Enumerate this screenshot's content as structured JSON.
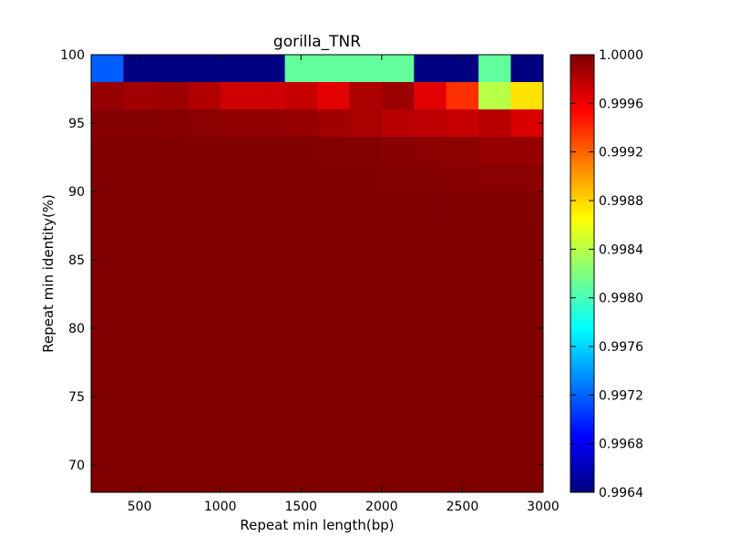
{
  "chart_data": {
    "type": "heatmap",
    "title": "gorilla_TNR",
    "xlabel": "Repeat min length(bp)",
    "ylabel": "Repeat min identity(%)",
    "x_range": [
      200,
      3000
    ],
    "y_range": [
      68,
      100
    ],
    "x_ticks": [
      "500",
      "1000",
      "1500",
      "2000",
      "2500",
      "3000"
    ],
    "y_ticks": [
      "70",
      "75",
      "80",
      "85",
      "90",
      "95",
      "100"
    ],
    "x_tick_values": [
      500,
      1000,
      1500,
      2000,
      2500,
      3000
    ],
    "y_tick_values": [
      70,
      75,
      80,
      85,
      90,
      95,
      100
    ],
    "x_bins": [
      200,
      400,
      600,
      800,
      1000,
      1200,
      1400,
      1600,
      1800,
      2000,
      2200,
      2400,
      2600,
      2800,
      3000
    ],
    "y_bins": [
      68,
      70,
      72,
      74,
      76,
      78,
      80,
      82,
      84,
      86,
      88,
      90,
      92,
      94,
      96,
      98,
      100
    ],
    "values": [
      [
        0.99718,
        0.9964,
        0.9964,
        0.9964,
        0.9964,
        0.9964,
        0.9981,
        0.9981,
        0.9981,
        0.9981,
        0.9964,
        0.9964,
        0.9981,
        0.9964
      ],
      [
        0.99992,
        0.99988,
        0.9999,
        0.99982,
        0.99972,
        0.99972,
        0.99975,
        0.99965,
        0.99984,
        0.9999,
        0.99965,
        0.99938,
        0.9984,
        0.99875
      ],
      [
        0.99998,
        0.99998,
        0.99997,
        0.99996,
        0.99994,
        0.99994,
        0.99992,
        0.99988,
        0.99985,
        0.9998,
        0.99978,
        0.99975,
        0.9998,
        0.99968
      ],
      [
        1.0,
        1.0,
        1.0,
        1.0,
        1.0,
        0.99999,
        0.99999,
        0.99998,
        0.99998,
        0.99997,
        0.99996,
        0.99995,
        0.99992,
        0.99992
      ],
      [
        1.0,
        1.0,
        1.0,
        1.0,
        1.0,
        1.0,
        1.0,
        0.99999,
        0.99999,
        0.99998,
        0.99998,
        0.99997,
        0.99996,
        0.99996
      ],
      [
        1.0,
        1.0,
        1.0,
        1.0,
        1.0,
        1.0,
        1.0,
        1.0,
        1.0,
        1.0,
        1.0,
        0.99999,
        0.99999,
        0.99999
      ],
      [
        1.0,
        1.0,
        1.0,
        1.0,
        1.0,
        1.0,
        1.0,
        1.0,
        1.0,
        1.0,
        1.0,
        1.0,
        1.0,
        1.0
      ],
      [
        1.0,
        1.0,
        1.0,
        1.0,
        1.0,
        1.0,
        1.0,
        1.0,
        1.0,
        1.0,
        1.0,
        1.0,
        1.0,
        1.0
      ],
      [
        1.0,
        1.0,
        1.0,
        1.0,
        1.0,
        1.0,
        1.0,
        1.0,
        1.0,
        1.0,
        1.0,
        1.0,
        1.0,
        1.0
      ],
      [
        1.0,
        1.0,
        1.0,
        1.0,
        1.0,
        1.0,
        1.0,
        1.0,
        1.0,
        1.0,
        1.0,
        1.0,
        1.0,
        1.0
      ],
      [
        1.0,
        1.0,
        1.0,
        1.0,
        1.0,
        1.0,
        1.0,
        1.0,
        1.0,
        1.0,
        1.0,
        1.0,
        1.0,
        1.0
      ],
      [
        1.0,
        1.0,
        1.0,
        1.0,
        1.0,
        1.0,
        1.0,
        1.0,
        1.0,
        1.0,
        1.0,
        1.0,
        1.0,
        1.0
      ],
      [
        1.0,
        1.0,
        1.0,
        1.0,
        1.0,
        1.0,
        1.0,
        1.0,
        1.0,
        1.0,
        1.0,
        1.0,
        1.0,
        1.0
      ],
      [
        1.0,
        1.0,
        1.0,
        1.0,
        1.0,
        1.0,
        1.0,
        1.0,
        1.0,
        1.0,
        1.0,
        1.0,
        1.0,
        1.0
      ],
      [
        1.0,
        1.0,
        1.0,
        1.0,
        1.0,
        1.0,
        1.0,
        1.0,
        1.0,
        1.0,
        1.0,
        1.0,
        1.0,
        1.0
      ],
      [
        1.0,
        1.0,
        1.0,
        1.0,
        1.0,
        1.0,
        1.0,
        1.0,
        1.0,
        1.0,
        1.0,
        1.0,
        1.0,
        1.0
      ]
    ],
    "colorbar": {
      "min": 0.9964,
      "max": 1.0,
      "colormap": "jet",
      "ticks": [
        "1.0000",
        "0.9996",
        "0.9992",
        "0.9988",
        "0.9984",
        "0.9980",
        "0.9976",
        "0.9972",
        "0.9968",
        "0.9964"
      ],
      "tick_values": [
        1.0,
        0.9996,
        0.9992,
        0.9988,
        0.9984,
        0.998,
        0.9976,
        0.9972,
        0.9968,
        0.9964
      ]
    },
    "grid": false
  }
}
